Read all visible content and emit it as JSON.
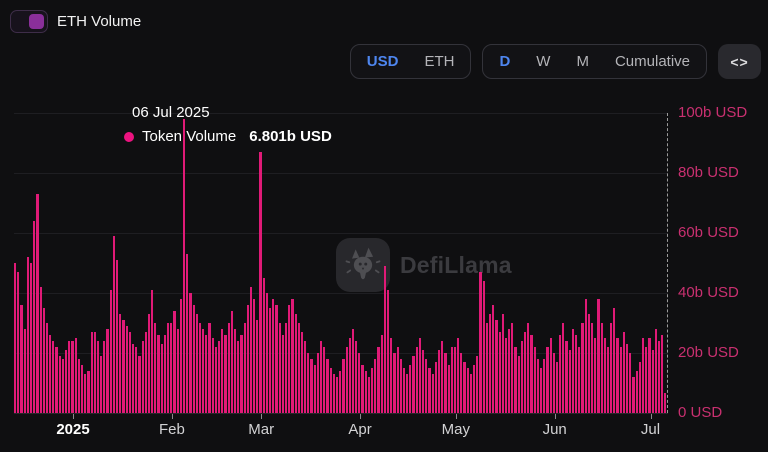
{
  "legend": {
    "label": "ETH Volume"
  },
  "controls": {
    "currency_options": [
      "USD",
      "ETH"
    ],
    "currency_selected": "USD",
    "interval_options": [
      "D",
      "W",
      "M",
      "Cumulative"
    ],
    "interval_selected": "D",
    "embed_label": "<>"
  },
  "tooltip": {
    "date": "06 Jul 2025",
    "series": "Token Volume",
    "value": "6.801b USD"
  },
  "watermark": {
    "text": "DefiLlama"
  },
  "colors": {
    "bar": "#e01a77",
    "axis_label_pink": "#c93070",
    "accent_blue": "#4e86ef",
    "toggle_knob": "#8a2f9a",
    "tooltip_dot": "#ec1380"
  },
  "chart_data": {
    "type": "bar",
    "title": "ETH Volume",
    "unit": "billions USD per day",
    "ylim": [
      0,
      100
    ],
    "grid": "horizontal-faint",
    "legend_position": "top-left",
    "y_axis_side": "right",
    "y_ticks": [
      {
        "value": 0,
        "label": "0 USD"
      },
      {
        "value": 20,
        "label": "20b USD"
      },
      {
        "value": 40,
        "label": "40b USD"
      },
      {
        "value": 60,
        "label": "60b USD"
      },
      {
        "value": 80,
        "label": "80b USD"
      },
      {
        "value": 100,
        "label": "100b USD"
      }
    ],
    "x_ticks": [
      {
        "label": "2025",
        "index": 18,
        "bold": true
      },
      {
        "label": "Feb",
        "index": 49
      },
      {
        "label": "Mar",
        "index": 77
      },
      {
        "label": "Apr",
        "index": 108
      },
      {
        "label": "May",
        "index": 138
      },
      {
        "label": "Jun",
        "index": 169
      },
      {
        "label": "Jul",
        "index": 199
      }
    ],
    "values": [
      50,
      47,
      36,
      28,
      52,
      50,
      64,
      73,
      42,
      35,
      30,
      26,
      24,
      22,
      19,
      18,
      21,
      24,
      24,
      25,
      18,
      16,
      13,
      14,
      27,
      27,
      24,
      19,
      24,
      28,
      41,
      59,
      51,
      33,
      31,
      29,
      27,
      23,
      22,
      19,
      24,
      27,
      33,
      41,
      30,
      26,
      23,
      26,
      30,
      30,
      34,
      28,
      38,
      98,
      53,
      40,
      36,
      33,
      30,
      28,
      26,
      30,
      25,
      22,
      24,
      28,
      26,
      30,
      34,
      28,
      24,
      26,
      30,
      36,
      42,
      38,
      31,
      87,
      45,
      40,
      35,
      38,
      36,
      30,
      26,
      30,
      36,
      38,
      33,
      30,
      27,
      24,
      20,
      18,
      16,
      20,
      24,
      22,
      18,
      15,
      13,
      12,
      14,
      18,
      22,
      25,
      28,
      24,
      20,
      16,
      14,
      12,
      15,
      18,
      22,
      26,
      49,
      41,
      25,
      20,
      22,
      18,
      15,
      13,
      16,
      19,
      22,
      25,
      21,
      18,
      15,
      13,
      17,
      21,
      24,
      20,
      16,
      22,
      22,
      25,
      20,
      17,
      15,
      13,
      16,
      19,
      47,
      44,
      30,
      33,
      36,
      31,
      27,
      33,
      25,
      28,
      30,
      22,
      19,
      24,
      27,
      30,
      26,
      22,
      18,
      15,
      18,
      22,
      25,
      20,
      17,
      26,
      30,
      24,
      21,
      28,
      26,
      22,
      30,
      38,
      33,
      30,
      25,
      38,
      30,
      25,
      22,
      30,
      35,
      25,
      22,
      27,
      23,
      20,
      12,
      14,
      17,
      25,
      22,
      25,
      21,
      28,
      24,
      26,
      6.8
    ],
    "highlight": {
      "index": 204,
      "date": "06 Jul 2025",
      "value_b": 6.801
    }
  }
}
